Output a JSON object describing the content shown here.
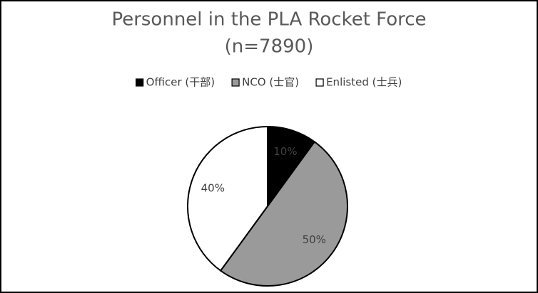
{
  "chart_data": {
    "type": "pie",
    "title": "Personnel in the PLA Rocket Force",
    "subtitle": "(n=7890)",
    "categories": [
      "Officer (干部)",
      "NCO (士官)",
      "Enlisted (士兵)"
    ],
    "values": [
      10,
      50,
      40
    ],
    "value_labels": [
      "10%",
      "50%",
      "40%"
    ],
    "colors": [
      "#000000",
      "#9a9a9a",
      "#ffffff"
    ],
    "legend": "top"
  }
}
